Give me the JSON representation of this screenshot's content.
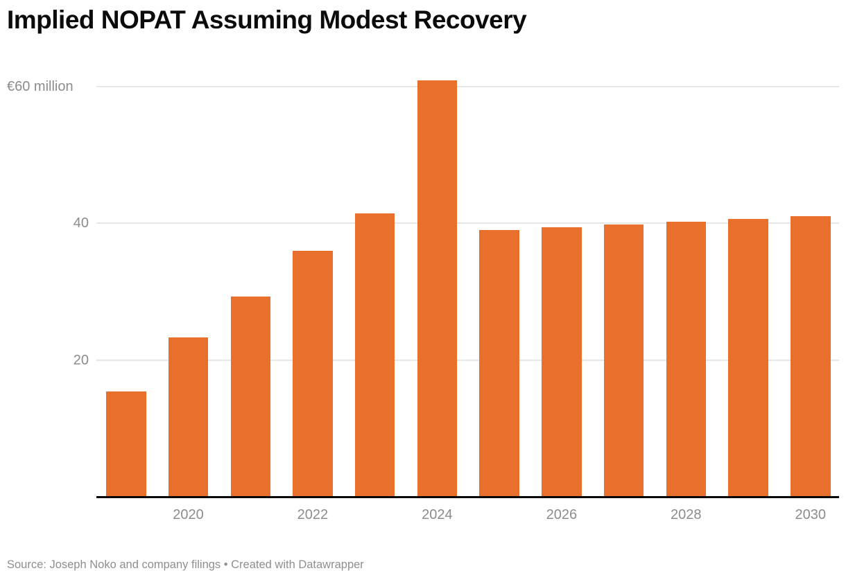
{
  "title": "Implied NOPAT Assuming Modest Recovery",
  "footer": {
    "text": "Source: Joseph Noko and company filings • Created with Datawrapper"
  },
  "colors": {
    "bar": "#E8702C",
    "grid": "#e6e6e6",
    "axis": "#050505",
    "label_gray": "#8c8c8c",
    "footer_gray": "#8e8e8e",
    "title": "#0b0b0b"
  },
  "chart_data": {
    "type": "bar",
    "title": "Implied NOPAT Assuming Modest Recovery",
    "unit": "€ million",
    "categories": [
      2019,
      2020,
      2021,
      2022,
      2023,
      2024,
      2025,
      2026,
      2027,
      2028,
      2029,
      2030
    ],
    "values": [
      15.4,
      23.3,
      29.3,
      36.0,
      41.4,
      60.9,
      39.0,
      39.4,
      39.8,
      40.2,
      40.6,
      41.0
    ],
    "xlabel": "",
    "ylabel": "",
    "ylim": [
      0,
      63
    ],
    "grid": "horizontal",
    "legend": "none",
    "yticks": [
      {
        "value": 60,
        "label": "€60 million",
        "align": "left"
      },
      {
        "value": 40,
        "label": "40",
        "align": "right"
      },
      {
        "value": 20,
        "label": "20",
        "align": "right"
      }
    ],
    "xtick_labels": [
      "2020",
      "2022",
      "2024",
      "2026",
      "2028",
      "2030"
    ]
  }
}
